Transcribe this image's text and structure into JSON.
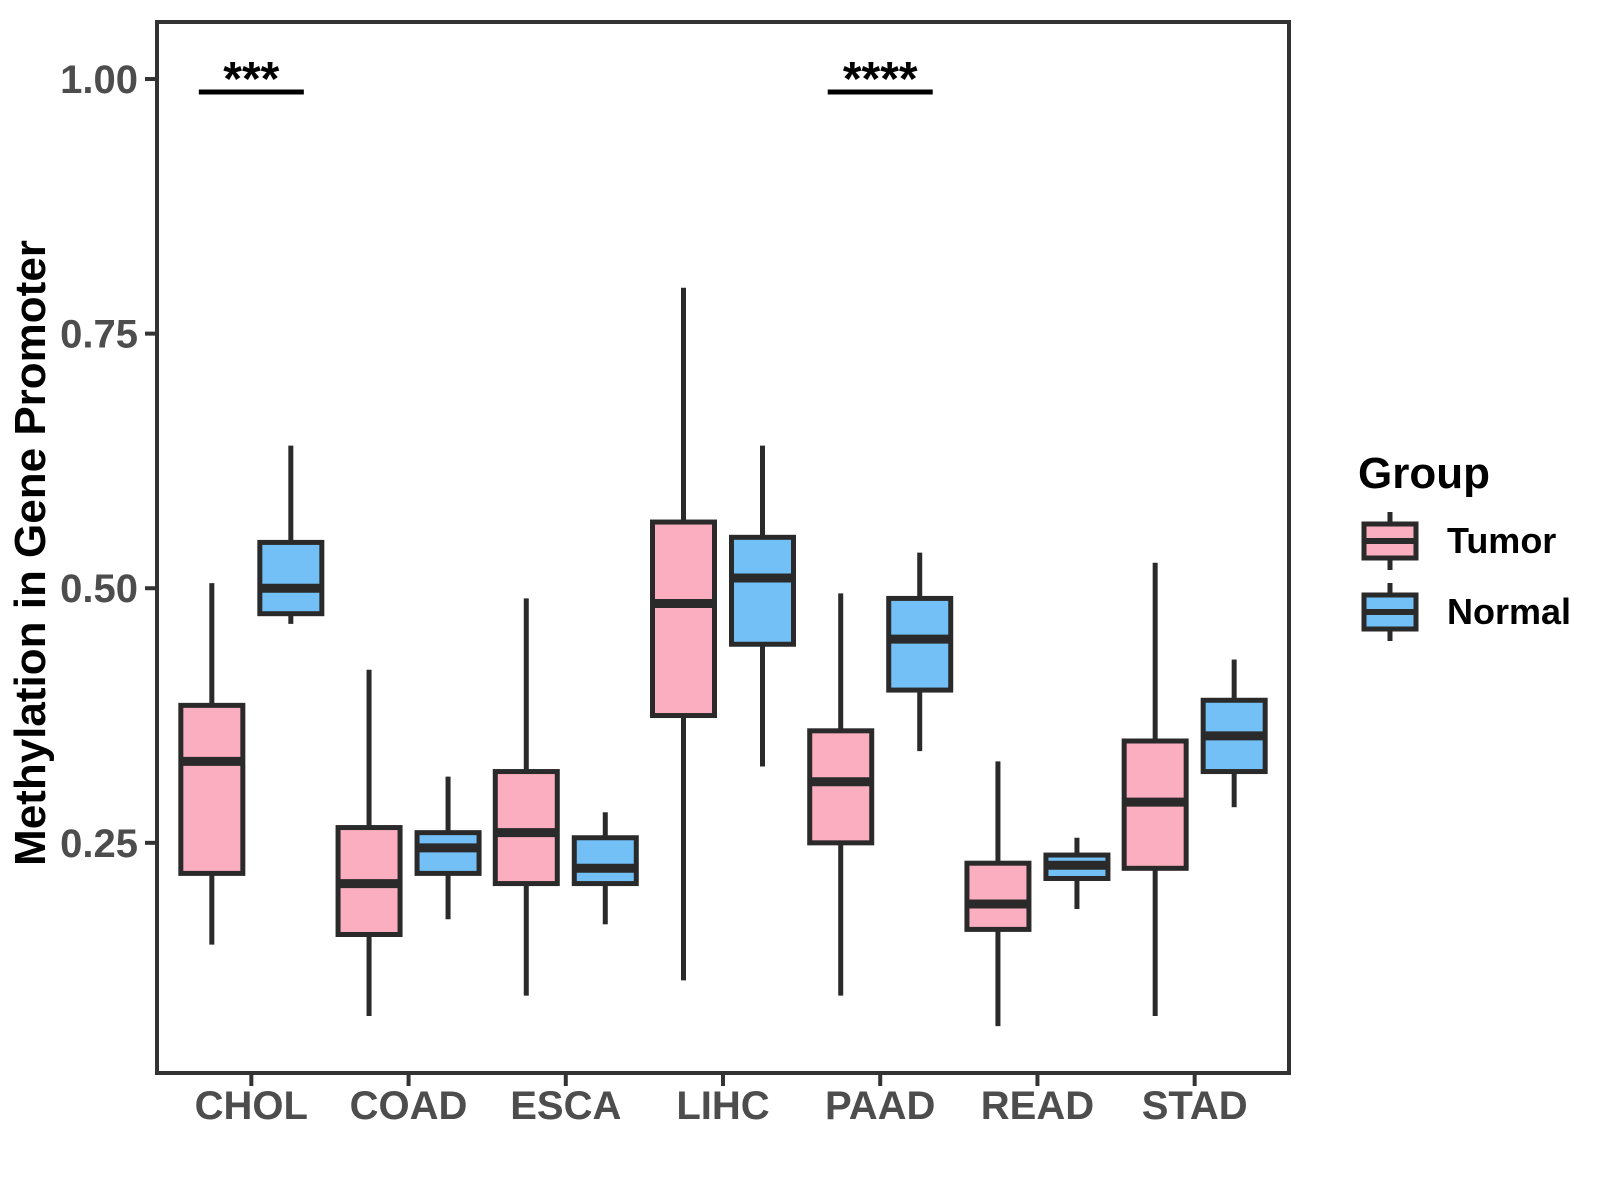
{
  "chart_data": {
    "type": "grouped_boxplot",
    "title": "",
    "xlabel": "",
    "ylabel": "Methylation in Gene Promoter",
    "categories": [
      "CHOL",
      "COAD",
      "ESCA",
      "LIHC",
      "PAAD",
      "READ",
      "STAD"
    ],
    "ylim": [
      0.024,
      1.056
    ],
    "yticks": [
      0.25,
      0.5,
      0.75,
      1.0
    ],
    "ytick_labels": [
      "0.25",
      "0.50",
      "0.75",
      "1.00"
    ],
    "grid": false,
    "background": "#FFFFFF",
    "legend": {
      "title": "Group",
      "position": "right",
      "entries": [
        {
          "name": "Tumor",
          "fill": "#FAAEC0"
        },
        {
          "name": "Normal",
          "fill": "#73C0F6"
        }
      ]
    },
    "series": [
      {
        "name": "Tumor",
        "fill": "#FAAEC0",
        "boxes": [
          {
            "category": "CHOL",
            "low": 0.15,
            "q1": 0.22,
            "median": 0.33,
            "q3": 0.385,
            "high": 0.505
          },
          {
            "category": "COAD",
            "low": 0.08,
            "q1": 0.16,
            "median": 0.21,
            "q3": 0.265,
            "high": 0.42
          },
          {
            "category": "ESCA",
            "low": 0.1,
            "q1": 0.21,
            "median": 0.26,
            "q3": 0.32,
            "high": 0.49
          },
          {
            "category": "LIHC",
            "low": 0.115,
            "q1": 0.375,
            "median": 0.485,
            "q3": 0.565,
            "high": 0.795
          },
          {
            "category": "PAAD",
            "low": 0.1,
            "q1": 0.25,
            "median": 0.31,
            "q3": 0.36,
            "high": 0.495
          },
          {
            "category": "READ",
            "low": 0.07,
            "q1": 0.165,
            "median": 0.19,
            "q3": 0.23,
            "high": 0.33
          },
          {
            "category": "STAD",
            "low": 0.08,
            "q1": 0.225,
            "median": 0.29,
            "q3": 0.35,
            "high": 0.525
          }
        ]
      },
      {
        "name": "Normal",
        "fill": "#73C0F6",
        "boxes": [
          {
            "category": "CHOL",
            "low": 0.465,
            "q1": 0.475,
            "median": 0.5,
            "q3": 0.545,
            "high": 0.64
          },
          {
            "category": "COAD",
            "low": 0.175,
            "q1": 0.22,
            "median": 0.245,
            "q3": 0.26,
            "high": 0.315
          },
          {
            "category": "ESCA",
            "low": 0.17,
            "q1": 0.21,
            "median": 0.225,
            "q3": 0.255,
            "high": 0.28
          },
          {
            "category": "LIHC",
            "low": 0.325,
            "q1": 0.445,
            "median": 0.51,
            "q3": 0.55,
            "high": 0.64
          },
          {
            "category": "PAAD",
            "low": 0.34,
            "q1": 0.4,
            "median": 0.45,
            "q3": 0.49,
            "high": 0.535
          },
          {
            "category": "READ",
            "low": 0.185,
            "q1": 0.215,
            "median": 0.228,
            "q3": 0.238,
            "high": 0.255
          },
          {
            "category": "STAD",
            "low": 0.285,
            "q1": 0.32,
            "median": 0.355,
            "q3": 0.39,
            "high": 0.43
          }
        ]
      }
    ],
    "annotations": [
      {
        "category": "CHOL",
        "label": "***"
      },
      {
        "category": "PAAD",
        "label": "****"
      }
    ]
  },
  "style": {
    "box_stroke": "#2A2A2A",
    "axis_color": "#333333",
    "tick_label_color": "#4D4D4D",
    "annotation_color": "#000000"
  }
}
